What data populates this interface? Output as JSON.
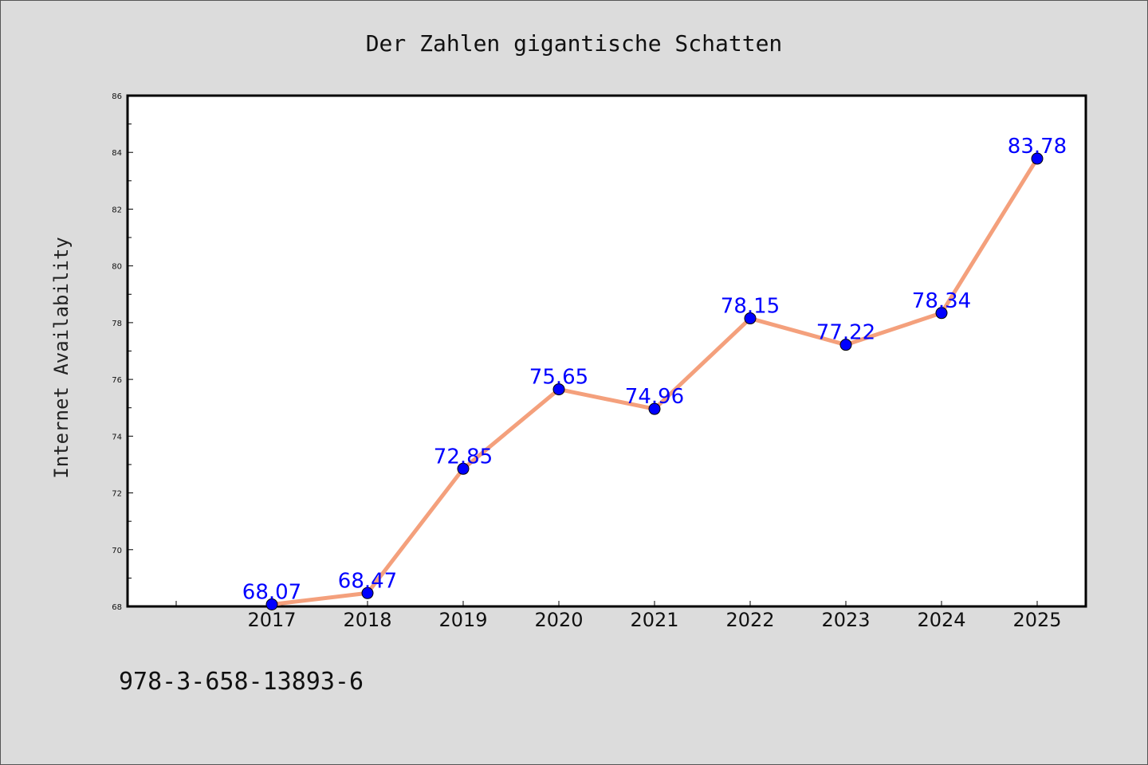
{
  "colors": {
    "background": "#dcdcdc",
    "plot_area": "#ffffff",
    "line": "#f4a07c",
    "marker": "#0000ff",
    "data_label": "#0000ff"
  },
  "footer_text": "978-3-658-13893-6",
  "chart_data": {
    "type": "line",
    "title": "Der Zahlen gigantische Schatten",
    "xlabel": "",
    "ylabel": "Internet Availability",
    "categories": [
      "2017",
      "2018",
      "2019",
      "2020",
      "2021",
      "2022",
      "2023",
      "2024",
      "2025"
    ],
    "series": [
      {
        "values": [
          68.07,
          68.47,
          72.85,
          75.65,
          74.96,
          78.15,
          77.22,
          78.34,
          83.78
        ],
        "data_labels": [
          "68.07",
          "68.47",
          "72.85",
          "75.65",
          "74.96",
          "78.15",
          "77.22",
          "78.34",
          "83.78"
        ]
      }
    ],
    "ylim": [
      68,
      86
    ],
    "yticks": [
      "68",
      "70",
      "72",
      "74",
      "76",
      "78",
      "80",
      "82",
      "84",
      "86"
    ],
    "grid": false,
    "legend": "none"
  }
}
